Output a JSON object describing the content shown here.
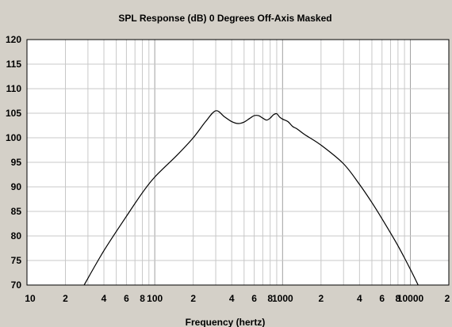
{
  "chart_data": {
    "type": "line",
    "title": "SPL Response (dB)   0 Degrees Off-Axis   Masked",
    "xlabel": "Frequency (hertz)",
    "ylabel": "",
    "x_scale": "log",
    "xlim": [
      10,
      20000
    ],
    "ylim": [
      70,
      120
    ],
    "grid": true,
    "legend": "none",
    "y_ticks": [
      "120",
      "115",
      "110",
      "105",
      "100",
      "95",
      "90",
      "85",
      "80",
      "75",
      "70"
    ],
    "x_tick_labels": [
      "10",
      "2",
      "4",
      "6",
      "8",
      "100",
      "2",
      "4",
      "6",
      "8",
      "1000",
      "2",
      "4",
      "6",
      "8",
      "10000",
      "2"
    ],
    "series": [
      {
        "x": [
          28,
          40,
          60,
          80,
          100,
          150,
          200,
          250,
          300,
          350,
          400,
          450,
          500,
          550,
          600,
          650,
          700,
          750,
          800,
          850,
          900,
          950,
          1000,
          1100,
          1200,
          1300,
          1500,
          2000,
          3000,
          4000,
          5000,
          6000,
          8000,
          10000,
          11500
        ],
        "y": [
          70,
          77,
          84,
          88.8,
          92,
          96.5,
          100,
          103.3,
          105.5,
          104.3,
          103.3,
          102.9,
          103.2,
          103.9,
          104.5,
          104.5,
          104.0,
          103.6,
          104.0,
          104.7,
          104.9,
          104.2,
          103.8,
          103.3,
          102.3,
          101.8,
          100.6,
          98.5,
          94.7,
          90.5,
          86.8,
          83.5,
          78.0,
          73.2,
          70
        ]
      }
    ],
    "colors": {
      "background": "#d4d0c8",
      "plot": "#ffffff",
      "grid": "#c8c8c8",
      "line": "#000000"
    }
  }
}
